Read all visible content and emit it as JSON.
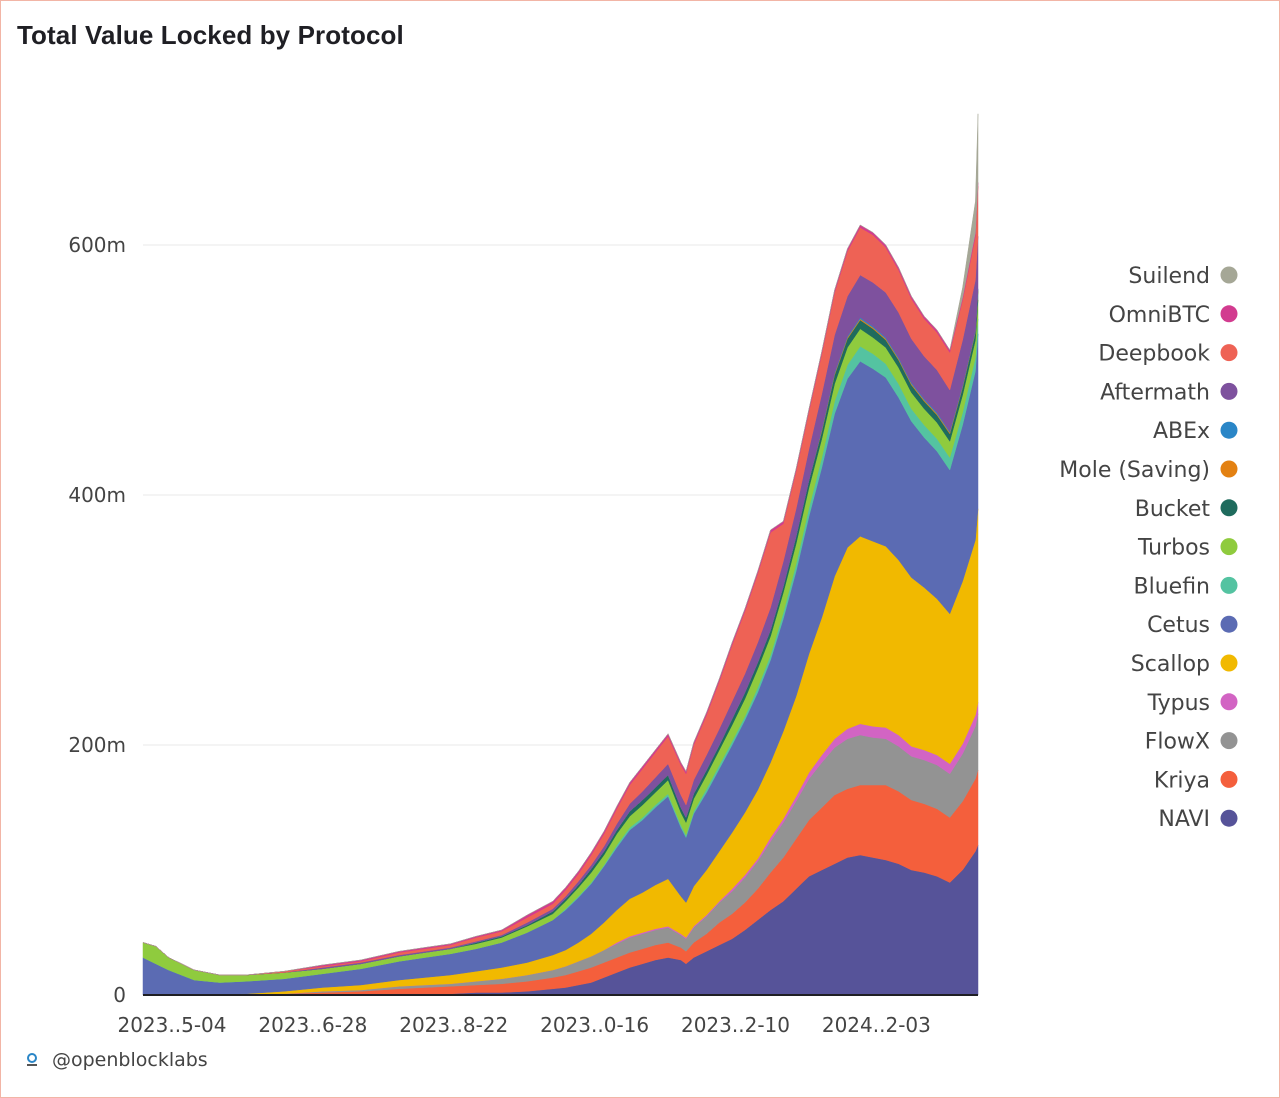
{
  "title": "Total Value Locked by Protocol",
  "watermark": "@openblocklabs",
  "chart_data": {
    "type": "area",
    "stacked": true,
    "title": "Total Value Locked by Protocol",
    "xlabel": "",
    "ylabel": "",
    "y_ticks": [
      {
        "value": 0,
        "label": "0"
      },
      {
        "value": 200,
        "label": "200m"
      },
      {
        "value": 400,
        "label": "400m"
      },
      {
        "value": 600,
        "label": "600m"
      }
    ],
    "ylim": [
      0,
      720
    ],
    "x_ticks": [
      {
        "value": 0,
        "label": "2023..5-04"
      },
      {
        "value": 55,
        "label": "2023..6-28"
      },
      {
        "value": 110,
        "label": "2023..8-22"
      },
      {
        "value": 165,
        "label": "2023..0-16"
      },
      {
        "value": 220,
        "label": "2023..2-10"
      },
      {
        "value": 275,
        "label": "2024..2-03"
      }
    ],
    "x": [
      0,
      5,
      10,
      20,
      30,
      40,
      55,
      70,
      85,
      100,
      110,
      120,
      130,
      140,
      150,
      160,
      165,
      170,
      175,
      180,
      185,
      190,
      195,
      200,
      205,
      210,
      212,
      215,
      220,
      225,
      230,
      235,
      240,
      245,
      250,
      255,
      260,
      265,
      270,
      275,
      280,
      285,
      290,
      295,
      300,
      305,
      310,
      315,
      320,
      325,
      326
    ],
    "grid": true,
    "legend_position": "right",
    "series": [
      {
        "name": "NAVI",
        "color": "#565399",
        "values": [
          0,
          0,
          0,
          0,
          0,
          0,
          0,
          0,
          0,
          1,
          1,
          1,
          2,
          2,
          3,
          5,
          6,
          8,
          10,
          14,
          18,
          22,
          25,
          28,
          30,
          28,
          25,
          30,
          35,
          40,
          45,
          52,
          60,
          68,
          75,
          85,
          95,
          100,
          105,
          110,
          112,
          110,
          108,
          105,
          100,
          98,
          95,
          90,
          100,
          115,
          120
        ]
      },
      {
        "name": "Kriya",
        "color": "#f45f3c",
        "values": [
          0,
          0,
          0,
          0,
          0,
          0,
          1,
          2,
          3,
          4,
          5,
          6,
          6,
          7,
          8,
          9,
          10,
          11,
          12,
          12,
          12,
          12,
          12,
          12,
          12,
          10,
          10,
          12,
          14,
          18,
          20,
          22,
          25,
          30,
          35,
          40,
          45,
          50,
          55,
          55,
          56,
          58,
          60,
          58,
          56,
          55,
          54,
          52,
          55,
          58,
          60
        ]
      },
      {
        "name": "FlowX",
        "color": "#939393",
        "values": [
          0,
          0,
          0,
          0,
          0,
          0,
          0,
          1,
          1,
          2,
          2,
          2,
          3,
          4,
          5,
          6,
          7,
          8,
          9,
          10,
          11,
          12,
          12,
          12,
          12,
          10,
          10,
          12,
          14,
          16,
          18,
          20,
          22,
          25,
          28,
          30,
          33,
          36,
          38,
          40,
          40,
          38,
          37,
          36,
          35,
          35,
          35,
          35,
          38,
          42,
          45
        ]
      },
      {
        "name": "Typus",
        "color": "#d264c3",
        "values": [
          0,
          0,
          0,
          0,
          0,
          0,
          0,
          0,
          0,
          0,
          0,
          0,
          0,
          0,
          0,
          0,
          0,
          0,
          0,
          0,
          1,
          1,
          1,
          1,
          1,
          1,
          1,
          1,
          1,
          1,
          2,
          2,
          2,
          3,
          3,
          4,
          5,
          6,
          7,
          8,
          9,
          9,
          9,
          9,
          8,
          8,
          8,
          8,
          8,
          9,
          9
        ]
      },
      {
        "name": "Scallop",
        "color": "#f1b900",
        "values": [
          0,
          0,
          0,
          0,
          0,
          1,
          2,
          3,
          4,
          5,
          6,
          7,
          8,
          9,
          10,
          12,
          13,
          15,
          18,
          22,
          26,
          30,
          32,
          35,
          38,
          30,
          28,
          32,
          36,
          40,
          45,
          50,
          55,
          60,
          70,
          80,
          95,
          110,
          130,
          145,
          150,
          148,
          145,
          140,
          135,
          130,
          125,
          120,
          130,
          140,
          155
        ]
      },
      {
        "name": "Cetus",
        "color": "#5b6bb3",
        "values": [
          30,
          25,
          20,
          12,
          10,
          10,
          10,
          11,
          13,
          15,
          16,
          17,
          18,
          20,
          24,
          28,
          32,
          36,
          40,
          45,
          50,
          55,
          58,
          62,
          66,
          55,
          52,
          58,
          62,
          66,
          70,
          74,
          78,
          82,
          90,
          100,
          110,
          120,
          130,
          135,
          140,
          138,
          135,
          130,
          125,
          120,
          118,
          115,
          125,
          135,
          140
        ]
      },
      {
        "name": "Bluefin",
        "color": "#54c3a1",
        "values": [
          0,
          0,
          0,
          0,
          0,
          0,
          0,
          0,
          0,
          0,
          0,
          0,
          0,
          0,
          0,
          0,
          1,
          1,
          1,
          1,
          2,
          2,
          2,
          2,
          2,
          2,
          2,
          2,
          3,
          3,
          3,
          3,
          4,
          4,
          5,
          6,
          7,
          8,
          10,
          11,
          12,
          12,
          11,
          11,
          10,
          10,
          10,
          10,
          10,
          11,
          12
        ]
      },
      {
        "name": "Turbos",
        "color": "#8fcb3e",
        "values": [
          12,
          14,
          10,
          8,
          6,
          5,
          5,
          4,
          4,
          4,
          4,
          4,
          4,
          4,
          5,
          5,
          6,
          7,
          8,
          8,
          9,
          9,
          10,
          10,
          11,
          10,
          10,
          10,
          11,
          12,
          13,
          14,
          15,
          15,
          16,
          16,
          16,
          15,
          14,
          14,
          14,
          13,
          13,
          13,
          13,
          13,
          13,
          13,
          14,
          14,
          15
        ]
      },
      {
        "name": "Bucket",
        "color": "#1f6b5d",
        "values": [
          0,
          0,
          0,
          0,
          0,
          0,
          0,
          0,
          0,
          0,
          0,
          0,
          1,
          1,
          1,
          2,
          2,
          2,
          3,
          3,
          3,
          4,
          4,
          4,
          4,
          4,
          4,
          4,
          4,
          4,
          5,
          5,
          5,
          5,
          5,
          6,
          6,
          6,
          7,
          7,
          7,
          7,
          6,
          6,
          6,
          6,
          6,
          6,
          6,
          6,
          7
        ]
      },
      {
        "name": "Mole (Saving)",
        "color": "#e38112",
        "values": [
          0,
          0,
          0,
          0,
          0,
          0,
          0,
          0,
          0,
          0,
          0,
          0,
          0,
          0,
          0,
          0,
          0,
          0,
          0,
          0,
          0,
          0,
          0,
          0,
          0,
          0,
          0,
          0,
          0,
          0,
          0,
          0,
          0,
          0,
          0,
          0,
          0,
          1,
          1,
          1,
          1,
          1,
          1,
          1,
          1,
          1,
          1,
          1,
          1,
          1,
          1
        ]
      },
      {
        "name": "ABEx",
        "color": "#2a86c7",
        "values": [
          0,
          0,
          0,
          0,
          0,
          0,
          0,
          0,
          0,
          0,
          0,
          0,
          0,
          0,
          0,
          0,
          0,
          0,
          0,
          0,
          0,
          0,
          0,
          0,
          0,
          0,
          0,
          0,
          0,
          0,
          0,
          0,
          0,
          0,
          0,
          0,
          0,
          1,
          1,
          1,
          1,
          1,
          1,
          1,
          1,
          1,
          1,
          1,
          1,
          1,
          1
        ]
      },
      {
        "name": "Aftermath",
        "color": "#7e519e",
        "values": [
          0,
          0,
          0,
          0,
          0,
          0,
          0,
          1,
          1,
          1,
          1,
          1,
          1,
          1,
          2,
          2,
          2,
          3,
          3,
          4,
          5,
          6,
          7,
          8,
          9,
          10,
          10,
          11,
          12,
          13,
          14,
          15,
          16,
          18,
          20,
          22,
          25,
          28,
          30,
          32,
          34,
          35,
          36,
          36,
          35,
          34,
          34,
          33,
          36,
          40,
          42
        ]
      },
      {
        "name": "Deepbook",
        "color": "#ee6255",
        "values": [
          0,
          0,
          0,
          0,
          0,
          0,
          1,
          1,
          1,
          2,
          2,
          2,
          3,
          3,
          4,
          4,
          5,
          6,
          8,
          10,
          12,
          15,
          18,
          20,
          22,
          24,
          25,
          28,
          32,
          38,
          45,
          50,
          55,
          60,
          30,
          30,
          30,
          32,
          34,
          36,
          38,
          38,
          36,
          34,
          32,
          30,
          30,
          30,
          32,
          35,
          40
        ]
      },
      {
        "name": "OmniBTC",
        "color": "#d23b8f",
        "values": [
          0,
          0,
          0,
          0,
          0,
          0,
          0,
          1,
          1,
          1,
          1,
          1,
          1,
          1,
          2,
          2,
          2,
          2,
          2,
          2,
          2,
          2,
          2,
          2,
          2,
          2,
          2,
          2,
          2,
          2,
          2,
          2,
          2,
          2,
          2,
          2,
          2,
          2,
          2,
          2,
          2,
          2,
          2,
          2,
          2,
          2,
          2,
          2,
          2,
          3,
          3
        ]
      },
      {
        "name": "Suilend",
        "color": "#a5a796",
        "values": [
          0,
          0,
          0,
          0,
          0,
          0,
          0,
          0,
          0,
          0,
          0,
          0,
          0,
          0,
          0,
          0,
          0,
          0,
          0,
          0,
          0,
          0,
          0,
          0,
          0,
          0,
          0,
          0,
          0,
          0,
          0,
          0,
          0,
          0,
          0,
          0,
          0,
          0,
          0,
          0,
          0,
          0,
          0,
          0,
          0,
          0,
          0,
          0,
          8,
          25,
          55
        ]
      }
    ]
  }
}
